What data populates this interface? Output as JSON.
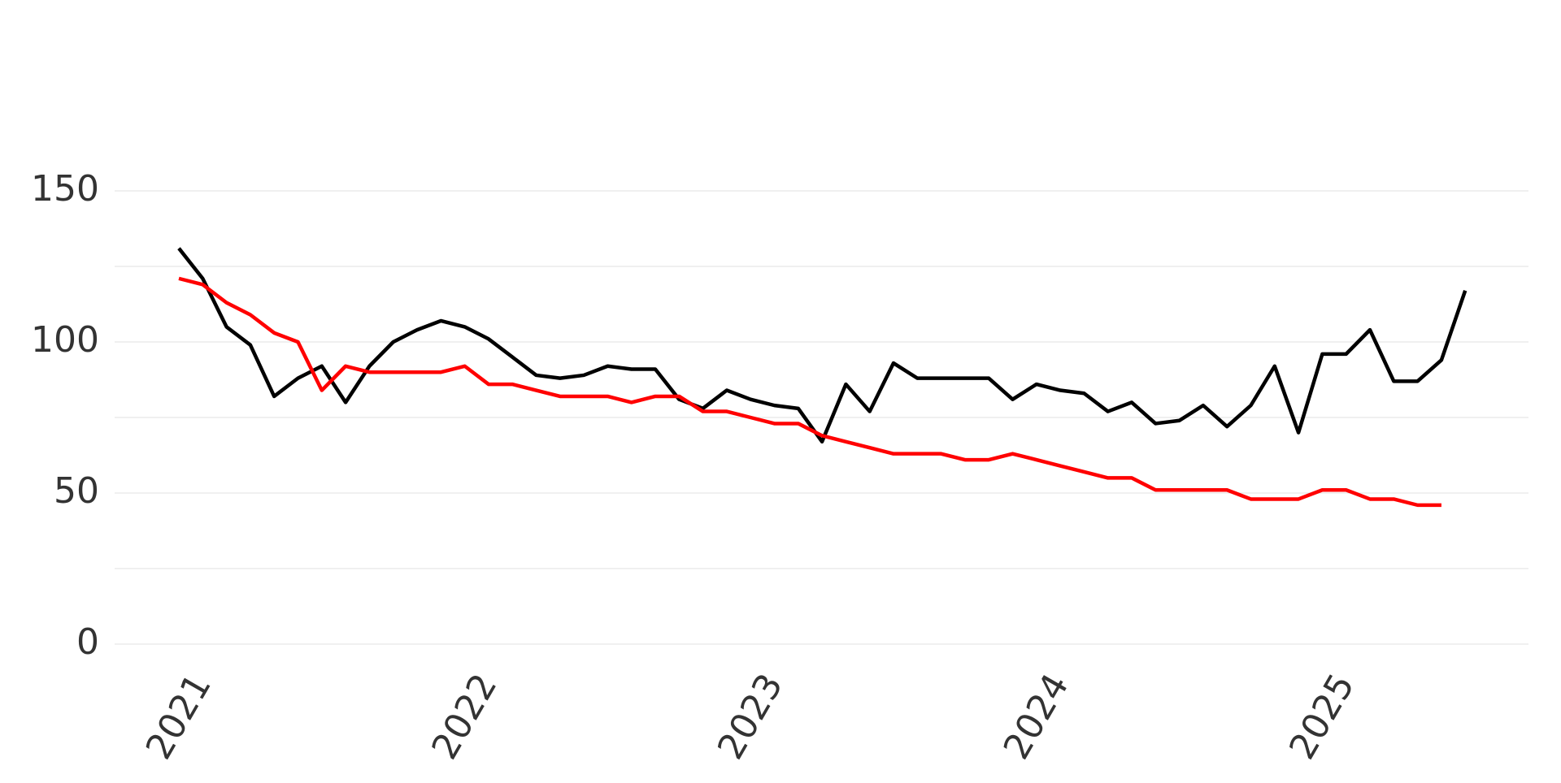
{
  "chart_data": {
    "type": "line",
    "x": [
      "2021-01",
      "2021-02",
      "2021-03",
      "2021-04",
      "2021-05",
      "2021-06",
      "2021-07",
      "2021-08",
      "2021-09",
      "2021-10",
      "2021-11",
      "2021-12",
      "2022-01",
      "2022-02",
      "2022-03",
      "2022-04",
      "2022-05",
      "2022-06",
      "2022-07",
      "2022-08",
      "2022-09",
      "2022-10",
      "2022-11",
      "2022-12",
      "2023-01",
      "2023-02",
      "2023-03",
      "2023-04",
      "2023-05",
      "2023-06",
      "2023-07",
      "2023-08",
      "2023-09",
      "2023-10",
      "2023-11",
      "2023-12",
      "2024-01",
      "2024-02",
      "2024-03",
      "2024-04",
      "2024-05",
      "2024-06",
      "2024-07",
      "2024-08",
      "2024-09",
      "2024-10",
      "2024-11",
      "2024-12",
      "2025-01",
      "2025-02",
      "2025-03",
      "2025-04",
      "2025-05",
      "2025-06",
      "2025-07"
    ],
    "series": [
      {
        "color": "#000000",
        "values": [
          131,
          121,
          105,
          99,
          82,
          88,
          92,
          80,
          92,
          100,
          104,
          107,
          105,
          101,
          95,
          89,
          88,
          89,
          92,
          91,
          91,
          81,
          78,
          84,
          81,
          79,
          78,
          67,
          86,
          77,
          93,
          88,
          88,
          88,
          88,
          81,
          86,
          84,
          83,
          77,
          80,
          73,
          74,
          79,
          72,
          79,
          92,
          70,
          96,
          96,
          104,
          87,
          87,
          94,
          117
        ]
      },
      {
        "color": "#ff0000",
        "values": [
          121,
          119,
          113,
          109,
          103,
          100,
          84,
          92,
          90,
          90,
          90,
          90,
          92,
          86,
          86,
          84,
          82,
          82,
          82,
          80,
          82,
          82,
          77,
          77,
          75,
          73,
          73,
          69,
          67,
          65,
          63,
          63,
          63,
          61,
          61,
          63,
          61,
          59,
          57,
          55,
          55,
          51,
          51,
          51,
          51,
          48,
          48,
          48,
          51,
          51,
          48,
          48,
          46,
          46,
          null
        ]
      }
    ],
    "ylim": [
      0,
      150
    ],
    "yticks": [
      0,
      50,
      100,
      150
    ],
    "minor_yticks": [
      25,
      75,
      125
    ],
    "xticks": [
      2021,
      2022,
      2023,
      2024,
      2025
    ],
    "grid": true
  }
}
